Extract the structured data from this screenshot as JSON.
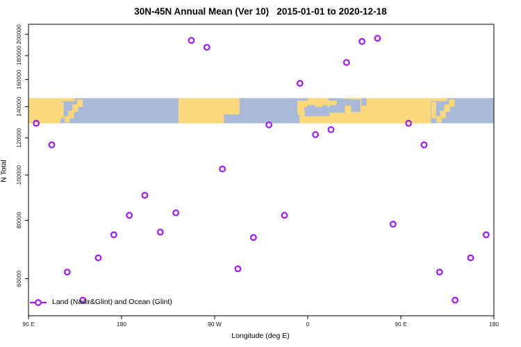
{
  "chart_data": {
    "type": "scatter",
    "title": "30N-45N Annual Mean (Ver 10)   2015-01-01 to 2020-12-18",
    "xlabel": "Longitude (deg E)",
    "ylabel": "N Total",
    "x_axis": {
      "range": [
        90,
        540
      ],
      "ticks": [
        {
          "value": 90,
          "label": "90 E"
        },
        {
          "value": 180,
          "label": "180"
        },
        {
          "value": 270,
          "label": "90 W"
        },
        {
          "value": 360,
          "label": "0"
        },
        {
          "value": 450,
          "label": "90 E"
        },
        {
          "value": 540,
          "label": "180"
        }
      ]
    },
    "y_axis": {
      "scale": "log",
      "range": [
        50000,
        210000
      ],
      "ticks": [
        60000,
        80000,
        100000,
        120000,
        140000,
        160000,
        180000,
        200000
      ]
    },
    "legend": {
      "label": "Land (Nadir&Glint) and Ocean (Glint)",
      "position": "bottom-left"
    },
    "series": [
      {
        "name": "Land (Nadir&Glint) and Ocean (Glint)",
        "marker": "open-circle",
        "color": "#A020F0",
        "points": [
          {
            "lon": 97.5,
            "n": 129000
          },
          {
            "lon": 112.5,
            "n": 116000
          },
          {
            "lon": 127.5,
            "n": 62000
          },
          {
            "lon": 142.5,
            "n": 54000
          },
          {
            "lon": 157.5,
            "n": 66500
          },
          {
            "lon": 172.5,
            "n": 74500
          },
          {
            "lon": 187.5,
            "n": 82000
          },
          {
            "lon": 202.5,
            "n": 90500
          },
          {
            "lon": 217.5,
            "n": 75500
          },
          {
            "lon": 232.5,
            "n": 83000
          },
          {
            "lon": 247.5,
            "n": 194000
          },
          {
            "lon": 262.5,
            "n": 187500
          },
          {
            "lon": 277.5,
            "n": 103000
          },
          {
            "lon": 292.5,
            "n": 63000
          },
          {
            "lon": 307.5,
            "n": 73500
          },
          {
            "lon": 322.5,
            "n": 128000
          },
          {
            "lon": 337.5,
            "n": 82000
          },
          {
            "lon": 352.5,
            "n": 157000
          },
          {
            "lon": 367.5,
            "n": 122000
          },
          {
            "lon": 382.5,
            "n": 125000
          },
          {
            "lon": 397.5,
            "n": 174000
          },
          {
            "lon": 412.5,
            "n": 193000
          },
          {
            "lon": 427.5,
            "n": 196000
          },
          {
            "lon": 442.5,
            "n": 78500
          },
          {
            "lon": 457.5,
            "n": 129000
          },
          {
            "lon": 472.5,
            "n": 116000
          },
          {
            "lon": 487.5,
            "n": 62000
          },
          {
            "lon": 502.5,
            "n": 54000
          },
          {
            "lon": 517.5,
            "n": 66500
          },
          {
            "lon": 532.5,
            "n": 74500
          }
        ]
      }
    ],
    "map_band": {
      "ocean_color": "#A8BAD8",
      "land_color": "#FCD87D",
      "n_range": [
        129000,
        146000
      ],
      "land_patches": [
        [
          90,
          121,
          0,
          1
        ],
        [
          119,
          135,
          0,
          0.12
        ],
        [
          119.5,
          124,
          0.15,
          0.8
        ],
        [
          125,
          130,
          0.72,
          0.97
        ],
        [
          128.5,
          134,
          0.5,
          0.8
        ],
        [
          132.5,
          138,
          0.25,
          0.55
        ],
        [
          137,
          142.5,
          0.05,
          0.35
        ],
        [
          235,
          279,
          0,
          1
        ],
        [
          279,
          294,
          0,
          0.65
        ],
        [
          350,
          360,
          0.1,
          0.65
        ],
        [
          352,
          397,
          0.55,
          1
        ],
        [
          360,
          380,
          0,
          0.28
        ],
        [
          367,
          374,
          0.2,
          0.62
        ],
        [
          379,
          394,
          0.1,
          0.62
        ],
        [
          394,
          479,
          0,
          1
        ],
        [
          479,
          495,
          0,
          0.12
        ],
        [
          479.5,
          484,
          0.15,
          0.8
        ],
        [
          484.5,
          489.5,
          0.72,
          0.97
        ],
        [
          488,
          493.5,
          0.5,
          0.8
        ],
        [
          492,
          497.5,
          0.25,
          0.55
        ],
        [
          496.5,
          502,
          0.05,
          0.35
        ]
      ],
      "sea_patches": [
        [
          357,
          381,
          0.35,
          0.72
        ],
        [
          381,
          396,
          0.28,
          0.58
        ],
        [
          388,
          402,
          0.03,
          0.3
        ],
        [
          402,
          411,
          0.05,
          0.55
        ],
        [
          412,
          417,
          0,
          0.3
        ]
      ]
    }
  }
}
